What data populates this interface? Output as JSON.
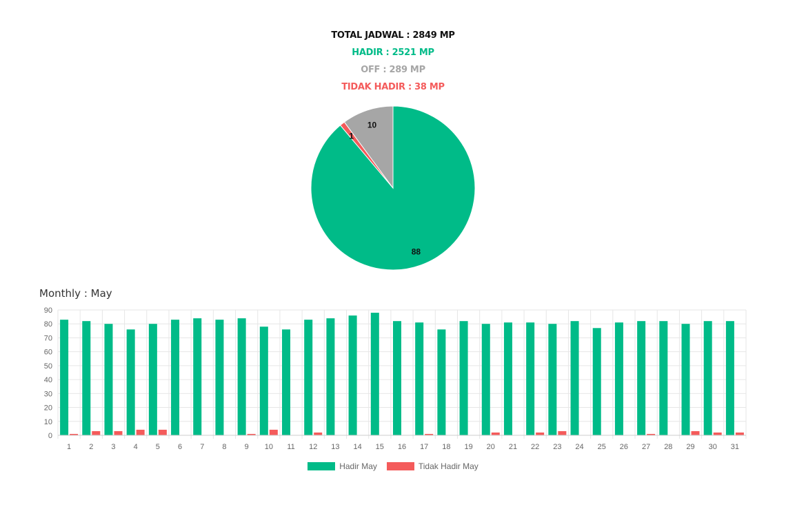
{
  "summary": {
    "total": "TOTAL JADWAL : 2849 MP",
    "hadir": "HADIR : 2521 MP",
    "off": "OFF : 289 MP",
    "tidak_hadir": "TIDAK HADIR : 38 MP"
  },
  "colors": {
    "hadir": "#00bb88",
    "tidak_hadir": "#f45b5b",
    "off": "#a6a6a6",
    "total": "#111111",
    "grid": "#e6e6e6",
    "tick": "#666666"
  },
  "monthly": {
    "title": "Monthly : May"
  },
  "chart_data": [
    {
      "type": "pie",
      "labels": [
        "Hadir",
        "Tidak Hadir",
        "Off"
      ],
      "values": [
        88,
        1,
        10
      ],
      "data_labels": [
        "88",
        "1",
        "10"
      ]
    },
    {
      "type": "bar",
      "title": "Monthly : May",
      "categories": [
        "1",
        "2",
        "3",
        "4",
        "5",
        "6",
        "7",
        "8",
        "9",
        "10",
        "11",
        "12",
        "13",
        "14",
        "15",
        "16",
        "17",
        "18",
        "19",
        "20",
        "21",
        "22",
        "23",
        "24",
        "25",
        "26",
        "27",
        "28",
        "29",
        "30",
        "31"
      ],
      "series": [
        {
          "name": "Hadir May",
          "values": [
            83,
            82,
            80,
            76,
            80,
            83,
            84,
            83,
            84,
            78,
            76,
            83,
            84,
            86,
            88,
            82,
            81,
            76,
            82,
            80,
            81,
            81,
            80,
            82,
            77,
            81,
            82,
            82,
            80,
            82,
            82
          ]
        },
        {
          "name": "Tidak Hadir May",
          "values": [
            1,
            3,
            3,
            4,
            4,
            0,
            0,
            0,
            1,
            4,
            0,
            2,
            0,
            0,
            0,
            0,
            1,
            0,
            0,
            2,
            0,
            2,
            3,
            0,
            0,
            0,
            1,
            0,
            3,
            2,
            2
          ]
        }
      ],
      "ylim": [
        0,
        90
      ],
      "yticks": [
        0,
        10,
        20,
        30,
        40,
        50,
        60,
        70,
        80,
        90
      ],
      "grid": true,
      "legend_position": "bottom"
    }
  ]
}
